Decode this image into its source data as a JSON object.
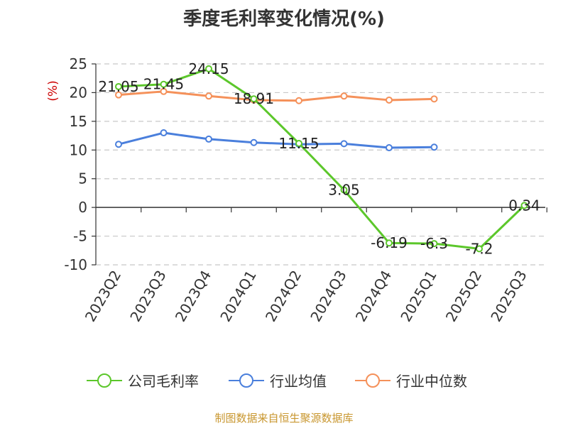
{
  "title": "季度毛利率变化情况(%)",
  "source": "制图数据来自恒生聚源数据库",
  "chart_data": {
    "type": "line",
    "title": "季度毛利率变化情况(%)",
    "ylabel": "(%)",
    "xlabel": "",
    "ylim": [
      -10,
      25
    ],
    "yticks": [
      25,
      20,
      15,
      10,
      5,
      0,
      -5,
      -10
    ],
    "grid": true,
    "legend_position": "bottom",
    "categories": [
      "2023Q2",
      "2023Q3",
      "2023Q4",
      "2024Q1",
      "2024Q2",
      "2024Q3",
      "2024Q4",
      "2025Q1",
      "2025Q2",
      "2025Q3"
    ],
    "series": [
      {
        "name": "公司毛利率",
        "color": "#5cc72b",
        "values": [
          21.05,
          21.45,
          24.15,
          18.91,
          11.15,
          3.05,
          -6.19,
          -6.3,
          -7.2,
          0.34
        ],
        "labels": [
          "21.05",
          "21.45",
          "24.15",
          "18.91",
          "11.15",
          "3.05",
          "-6.19",
          "-6.3",
          "-7.2",
          "0.34"
        ]
      },
      {
        "name": "行业均值",
        "color": "#4a7fdc",
        "values": [
          11.0,
          13.0,
          11.9,
          11.3,
          11.0,
          11.1,
          10.4,
          10.5,
          null,
          null
        ]
      },
      {
        "name": "行业中位数",
        "color": "#f5915a",
        "values": [
          19.6,
          20.2,
          19.4,
          18.7,
          18.6,
          19.4,
          18.7,
          18.9,
          null,
          null
        ]
      }
    ]
  }
}
